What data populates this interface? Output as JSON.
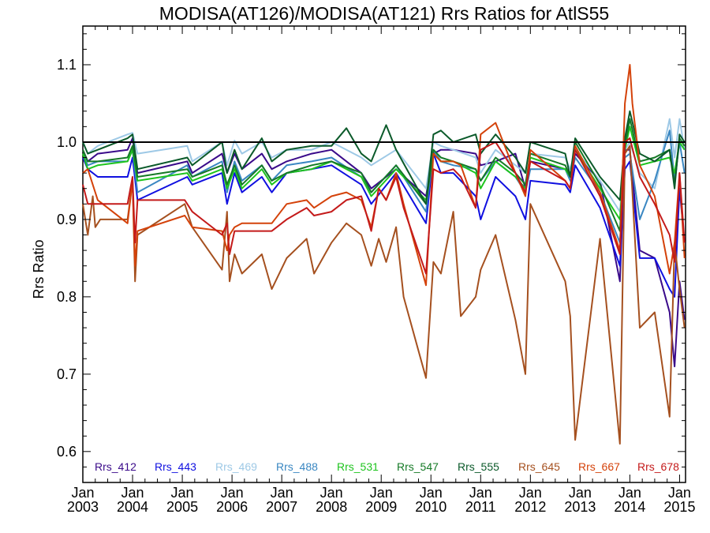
{
  "chart_data": {
    "type": "line",
    "title": "MODISA(AT126)/MODISA(AT121)  Rrs Ratios for AtlS55",
    "ylabel": "Rrs Ratio",
    "xlabel": "",
    "xlim": [
      2003.0,
      2015.12
    ],
    "ylim": [
      0.56,
      1.15
    ],
    "yticks": [
      {
        "v": 0.6,
        "label": "0.6"
      },
      {
        "v": 0.7,
        "label": "0.7"
      },
      {
        "v": 0.8,
        "label": "0.8"
      },
      {
        "v": 0.9,
        "label": "0.9"
      },
      {
        "v": 1.0,
        "label": "1.0"
      },
      {
        "v": 1.1,
        "label": "1.1"
      }
    ],
    "xticks": [
      {
        "v": 2003,
        "month": "Jan",
        "year": "2003"
      },
      {
        "v": 2004,
        "month": "Jan",
        "year": "2004"
      },
      {
        "v": 2005,
        "month": "Jan",
        "year": "2005"
      },
      {
        "v": 2006,
        "month": "Jan",
        "year": "2006"
      },
      {
        "v": 2007,
        "month": "Jan",
        "year": "2007"
      },
      {
        "v": 2008,
        "month": "Jan",
        "year": "2008"
      },
      {
        "v": 2009,
        "month": "Jan",
        "year": "2009"
      },
      {
        "v": 2010,
        "month": "Jan",
        "year": "2010"
      },
      {
        "v": 2011,
        "month": "Jan",
        "year": "2011"
      },
      {
        "v": 2012,
        "month": "Jan",
        "year": "2012"
      },
      {
        "v": 2013,
        "month": "Jan",
        "year": "2013"
      },
      {
        "v": 2014,
        "month": "Jan",
        "year": "2014"
      },
      {
        "v": 2015,
        "month": "Jan",
        "year": "2015"
      }
    ],
    "reference_line": 1.0,
    "legend_position": "bottom",
    "series": [
      {
        "name": "Rrs_412",
        "color": "#3a0a8a",
        "x": [
          2003.0,
          2003.1,
          2003.3,
          2003.9,
          2004.0,
          2004.1,
          2005.1,
          2005.2,
          2005.8,
          2005.9,
          2006.05,
          2006.2,
          2006.6,
          2006.8,
          2007.1,
          2007.6,
          2008.0,
          2008.6,
          2008.8,
          2009.3,
          2009.9,
          2010.05,
          2010.2,
          2010.45,
          2010.9,
          2011.0,
          2011.3,
          2011.7,
          2011.9,
          2012.0,
          2012.7,
          2012.8,
          2012.9,
          2013.4,
          2013.8,
          2013.9,
          2014.0,
          2014.2,
          2014.5,
          2014.8,
          2014.9,
          2015.0,
          2015.1
        ],
        "y": [
          0.99,
          0.975,
          0.985,
          0.99,
          1.005,
          0.96,
          0.975,
          0.96,
          0.985,
          0.96,
          0.985,
          0.965,
          0.985,
          0.965,
          0.975,
          0.985,
          0.99,
          0.96,
          0.94,
          0.965,
          0.93,
          0.985,
          0.99,
          0.99,
          0.985,
          0.97,
          0.975,
          0.985,
          0.94,
          0.975,
          0.965,
          0.955,
          0.985,
          0.95,
          0.82,
          0.99,
          0.99,
          0.86,
          0.85,
          0.78,
          0.71,
          0.82,
          0.77
        ]
      },
      {
        "name": "Rrs_443",
        "color": "#1010e0",
        "x": [
          2003.0,
          2003.1,
          2003.3,
          2003.9,
          2004.0,
          2004.1,
          2005.1,
          2005.2,
          2005.8,
          2005.9,
          2006.05,
          2006.2,
          2006.6,
          2006.8,
          2007.1,
          2007.6,
          2008.0,
          2008.6,
          2008.8,
          2009.3,
          2009.9,
          2010.05,
          2010.2,
          2010.45,
          2010.9,
          2011.0,
          2011.3,
          2011.7,
          2011.9,
          2012.0,
          2012.7,
          2012.8,
          2012.9,
          2013.4,
          2013.8,
          2013.9,
          2014.0,
          2014.2,
          2014.5,
          2014.8,
          2014.9,
          2015.0,
          2015.1
        ],
        "y": [
          0.98,
          0.965,
          0.955,
          0.955,
          0.98,
          0.925,
          0.955,
          0.945,
          0.96,
          0.92,
          0.96,
          0.935,
          0.955,
          0.935,
          0.96,
          0.965,
          0.97,
          0.945,
          0.92,
          0.96,
          0.895,
          0.985,
          0.96,
          0.96,
          0.93,
          0.9,
          0.955,
          0.93,
          0.9,
          0.95,
          0.945,
          0.935,
          0.97,
          0.915,
          0.84,
          0.965,
          0.975,
          0.85,
          0.85,
          0.81,
          0.8,
          0.94,
          0.87
        ]
      },
      {
        "name": "Rrs_469",
        "color": "#9ec9e6",
        "x": [
          2003.0,
          2003.1,
          2003.3,
          2003.9,
          2004.0,
          2004.1,
          2005.1,
          2005.2,
          2005.8,
          2005.9,
          2006.05,
          2006.2,
          2006.6,
          2006.8,
          2007.1,
          2007.6,
          2008.0,
          2008.6,
          2008.8,
          2009.3,
          2009.9,
          2010.05,
          2010.2,
          2010.45,
          2010.9,
          2011.0,
          2011.3,
          2011.7,
          2011.9,
          2012.0,
          2012.7,
          2012.8,
          2012.9,
          2013.4,
          2013.8,
          2013.9,
          2014.0,
          2014.2,
          2014.5,
          2014.8,
          2014.9,
          2015.0,
          2015.1
        ],
        "y": [
          1.0,
          0.985,
          0.995,
          1.01,
          1.012,
          0.985,
          0.995,
          0.975,
          1.0,
          0.97,
          1.002,
          0.985,
          1.0,
          0.98,
          0.99,
          0.99,
          1.0,
          0.98,
          0.97,
          0.99,
          0.94,
          1.0,
          0.995,
          0.99,
          0.98,
          0.96,
          0.99,
          0.97,
          0.96,
          0.985,
          0.98,
          0.965,
          0.99,
          0.95,
          0.91,
          0.99,
          1.0,
          0.96,
          0.94,
          1.03,
          0.98,
          1.03,
          0.99
        ]
      },
      {
        "name": "Rrs_488",
        "color": "#3a87c2",
        "x": [
          2003.0,
          2003.1,
          2003.3,
          2003.9,
          2004.0,
          2004.1,
          2005.1,
          2005.2,
          2005.8,
          2005.9,
          2006.05,
          2006.2,
          2006.6,
          2006.8,
          2007.1,
          2007.6,
          2008.0,
          2008.6,
          2008.8,
          2009.3,
          2009.9,
          2010.05,
          2010.2,
          2010.45,
          2010.9,
          2011.0,
          2011.3,
          2011.7,
          2011.9,
          2012.0,
          2012.7,
          2012.8,
          2012.9,
          2013.4,
          2013.8,
          2013.9,
          2014.0,
          2014.2,
          2014.5,
          2014.8,
          2014.9,
          2015.0,
          2015.1
        ],
        "y": [
          0.985,
          0.97,
          0.975,
          0.975,
          0.99,
          0.935,
          0.97,
          0.955,
          0.975,
          0.935,
          0.975,
          0.95,
          0.97,
          0.95,
          0.97,
          0.975,
          0.98,
          0.955,
          0.935,
          0.97,
          0.91,
          0.99,
          0.975,
          0.97,
          0.965,
          0.95,
          0.975,
          0.955,
          0.935,
          0.965,
          0.965,
          0.95,
          0.98,
          0.935,
          0.87,
          0.98,
          0.985,
          0.9,
          0.95,
          1.015,
          0.95,
          1.0,
          0.96
        ]
      },
      {
        "name": "Rrs_531",
        "color": "#1ec41e",
        "x": [
          2003.0,
          2003.1,
          2003.3,
          2003.9,
          2004.0,
          2004.1,
          2005.1,
          2005.2,
          2005.8,
          2005.9,
          2006.05,
          2006.2,
          2006.6,
          2006.8,
          2007.1,
          2007.6,
          2008.0,
          2008.6,
          2008.8,
          2009.3,
          2009.9,
          2010.05,
          2010.2,
          2010.45,
          2010.9,
          2011.0,
          2011.3,
          2011.7,
          2011.9,
          2012.0,
          2012.7,
          2012.8,
          2012.9,
          2013.4,
          2013.8,
          2013.9,
          2014.0,
          2014.2,
          2014.5,
          2014.8,
          2014.9,
          2015.0,
          2015.1
        ],
        "y": [
          0.985,
          0.965,
          0.97,
          0.975,
          0.99,
          0.95,
          0.96,
          0.95,
          0.965,
          0.94,
          0.965,
          0.94,
          0.965,
          0.945,
          0.96,
          0.965,
          0.975,
          0.955,
          0.93,
          0.965,
          0.925,
          0.985,
          0.975,
          0.975,
          0.96,
          0.94,
          0.975,
          0.955,
          0.94,
          0.98,
          0.965,
          0.955,
          0.99,
          0.94,
          0.9,
          0.99,
          1.02,
          0.97,
          0.975,
          0.98,
          0.96,
          1.0,
          0.99
        ]
      },
      {
        "name": "Rrs_547",
        "color": "#157a26",
        "x": [
          2003.0,
          2003.1,
          2003.3,
          2003.9,
          2004.0,
          2004.1,
          2005.1,
          2005.2,
          2005.8,
          2005.9,
          2006.05,
          2006.2,
          2006.6,
          2006.8,
          2007.1,
          2007.6,
          2008.0,
          2008.6,
          2008.8,
          2009.3,
          2009.9,
          2010.05,
          2010.2,
          2010.45,
          2010.9,
          2011.0,
          2011.3,
          2011.7,
          2011.9,
          2012.0,
          2012.7,
          2012.8,
          2012.9,
          2013.4,
          2013.8,
          2013.9,
          2014.0,
          2014.2,
          2014.5,
          2014.8,
          2014.9,
          2015.0,
          2015.1
        ],
        "y": [
          0.99,
          0.975,
          0.975,
          0.98,
          0.995,
          0.955,
          0.965,
          0.955,
          0.97,
          0.945,
          0.97,
          0.945,
          0.97,
          0.95,
          0.96,
          0.97,
          0.975,
          0.96,
          0.935,
          0.97,
          0.92,
          0.99,
          0.98,
          0.975,
          0.965,
          0.95,
          0.98,
          0.96,
          0.945,
          0.985,
          0.97,
          0.955,
          1.0,
          0.945,
          0.885,
          0.995,
          1.03,
          0.975,
          0.98,
          0.99,
          0.945,
          1.005,
          0.995
        ]
      },
      {
        "name": "Rrs_555",
        "color": "#0b5a2a",
        "x": [
          2003.0,
          2003.1,
          2003.3,
          2003.9,
          2004.0,
          2004.1,
          2005.1,
          2005.2,
          2005.8,
          2005.9,
          2006.05,
          2006.2,
          2006.6,
          2006.8,
          2007.1,
          2007.6,
          2008.0,
          2008.3,
          2008.6,
          2008.8,
          2009.1,
          2009.3,
          2009.9,
          2010.05,
          2010.2,
          2010.45,
          2010.9,
          2011.0,
          2011.3,
          2011.7,
          2011.9,
          2012.0,
          2012.7,
          2012.8,
          2012.9,
          2013.4,
          2013.8,
          2013.9,
          2014.0,
          2014.2,
          2014.5,
          2014.8,
          2014.9,
          2015.0,
          2015.1
        ],
        "y": [
          1.0,
          0.985,
          0.99,
          1.005,
          1.01,
          0.965,
          0.98,
          0.97,
          1.0,
          0.96,
          0.99,
          0.965,
          1.005,
          0.975,
          0.99,
          0.995,
          0.995,
          1.018,
          0.985,
          0.975,
          1.022,
          0.99,
          0.92,
          1.01,
          1.015,
          1.0,
          1.01,
          0.985,
          1.01,
          0.98,
          0.96,
          1.0,
          0.985,
          0.955,
          1.005,
          0.955,
          0.925,
          1.005,
          1.04,
          0.985,
          0.975,
          0.99,
          0.94,
          1.01,
          1.0
        ]
      },
      {
        "name": "Rrs_645",
        "color": "#a5501f",
        "x": [
          2003.0,
          2003.1,
          2003.2,
          2003.25,
          2003.35,
          2003.9,
          2004.0,
          2004.05,
          2004.1,
          2005.05,
          2005.2,
          2005.8,
          2005.9,
          2005.95,
          2006.05,
          2006.2,
          2006.6,
          2006.8,
          2007.1,
          2007.5,
          2007.65,
          2008.0,
          2008.3,
          2008.6,
          2008.8,
          2008.95,
          2009.1,
          2009.3,
          2009.45,
          2009.9,
          2010.05,
          2010.2,
          2010.45,
          2010.6,
          2010.9,
          2011.0,
          2011.3,
          2011.7,
          2011.9,
          2012.0,
          2012.7,
          2012.8,
          2012.9,
          2013.4,
          2013.8,
          2013.9,
          2014.0,
          2014.2,
          2014.5,
          2014.8,
          2014.9,
          2015.0,
          2015.1
        ],
        "y": [
          0.92,
          0.88,
          0.93,
          0.89,
          0.9,
          0.9,
          0.95,
          0.82,
          0.88,
          0.92,
          0.89,
          0.835,
          0.91,
          0.82,
          0.855,
          0.83,
          0.855,
          0.81,
          0.85,
          0.875,
          0.83,
          0.87,
          0.895,
          0.88,
          0.84,
          0.875,
          0.845,
          0.89,
          0.8,
          0.695,
          0.845,
          0.83,
          0.91,
          0.775,
          0.8,
          0.835,
          0.88,
          0.77,
          0.7,
          0.92,
          0.82,
          0.775,
          0.615,
          0.875,
          0.61,
          0.985,
          0.995,
          0.76,
          0.78,
          0.645,
          0.87,
          0.81,
          0.76
        ]
      },
      {
        "name": "Rrs_667",
        "color": "#d4420a",
        "x": [
          2003.0,
          2003.1,
          2003.3,
          2003.9,
          2004.0,
          2004.05,
          2004.1,
          2005.05,
          2005.2,
          2005.8,
          2005.9,
          2005.95,
          2006.05,
          2006.2,
          2006.6,
          2006.8,
          2007.1,
          2007.5,
          2007.65,
          2008.0,
          2008.3,
          2008.6,
          2008.8,
          2008.95,
          2009.1,
          2009.3,
          2009.45,
          2009.9,
          2010.05,
          2010.2,
          2010.45,
          2010.6,
          2010.9,
          2011.0,
          2011.3,
          2011.7,
          2011.9,
          2012.0,
          2012.7,
          2012.8,
          2012.9,
          2013.4,
          2013.8,
          2013.9,
          2014.0,
          2014.05,
          2014.2,
          2014.5,
          2014.8,
          2014.9,
          2015.0,
          2015.1
        ],
        "y": [
          0.96,
          0.965,
          0.925,
          0.895,
          0.95,
          0.84,
          0.885,
          0.905,
          0.89,
          0.885,
          0.86,
          0.88,
          0.89,
          0.895,
          0.895,
          0.895,
          0.92,
          0.925,
          0.915,
          0.93,
          0.935,
          0.925,
          0.89,
          0.94,
          0.925,
          0.96,
          0.92,
          0.815,
          0.985,
          0.975,
          0.975,
          0.97,
          0.915,
          1.01,
          1.025,
          0.96,
          0.93,
          0.99,
          0.95,
          0.94,
          0.995,
          0.935,
          0.86,
          1.05,
          1.1,
          1.05,
          0.97,
          0.93,
          0.83,
          0.87,
          0.96,
          0.85
        ]
      },
      {
        "name": "Rrs_678",
        "color": "#c41a1a",
        "x": [
          2003.0,
          2003.1,
          2003.3,
          2003.9,
          2004.0,
          2004.05,
          2004.1,
          2005.05,
          2005.2,
          2005.8,
          2005.9,
          2005.95,
          2006.05,
          2006.2,
          2006.6,
          2006.8,
          2007.1,
          2007.5,
          2007.65,
          2008.0,
          2008.3,
          2008.6,
          2008.8,
          2008.95,
          2009.1,
          2009.3,
          2009.45,
          2009.9,
          2010.05,
          2010.2,
          2010.45,
          2010.6,
          2010.9,
          2011.0,
          2011.3,
          2011.7,
          2011.9,
          2012.0,
          2012.7,
          2012.8,
          2012.9,
          2013.4,
          2013.8,
          2013.9,
          2014.0,
          2014.2,
          2014.5,
          2014.8,
          2014.9,
          2015.0,
          2015.1
        ],
        "y": [
          0.945,
          0.92,
          0.92,
          0.92,
          0.955,
          0.87,
          0.925,
          0.925,
          0.91,
          0.88,
          0.895,
          0.855,
          0.885,
          0.885,
          0.885,
          0.885,
          0.9,
          0.915,
          0.905,
          0.91,
          0.925,
          0.93,
          0.885,
          0.94,
          0.925,
          0.955,
          0.915,
          0.83,
          0.965,
          0.96,
          0.965,
          0.955,
          0.915,
          0.99,
          1.0,
          0.96,
          0.935,
          0.975,
          0.95,
          0.94,
          0.99,
          0.93,
          0.855,
          1.0,
          1.005,
          0.955,
          0.92,
          0.88,
          0.845,
          0.96,
          0.87
        ]
      }
    ]
  }
}
